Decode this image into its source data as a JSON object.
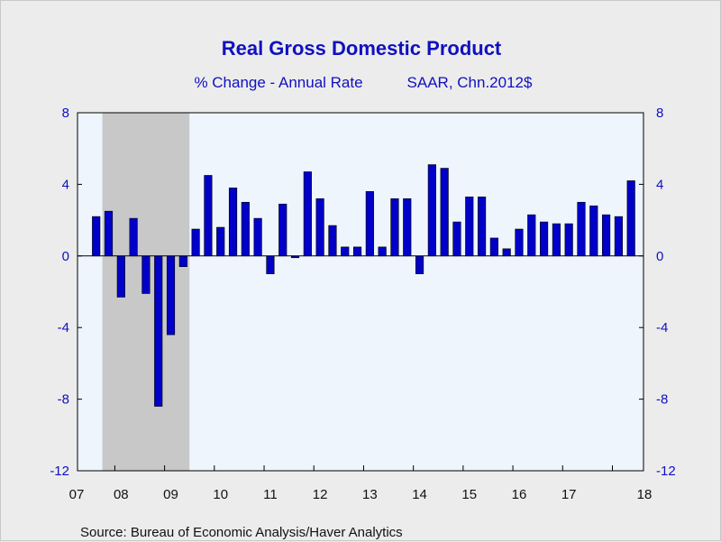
{
  "chart_data": {
    "type": "bar",
    "title": "Real Gross Domestic Product",
    "subtitle_left": "% Change - Annual Rate",
    "subtitle_right": "SAAR, Chn.2012$",
    "source": "Source:  Bureau of Economic Analysis/Haver Analytics",
    "ylim": [
      -12,
      8
    ],
    "yticks": [
      -12,
      -8,
      -4,
      0,
      4,
      8
    ],
    "ytick_labels": [
      "-12",
      "-8",
      "-4",
      "0",
      "4",
      "8"
    ],
    "xtick_labels": [
      "07",
      "08",
      "09",
      "10",
      "11",
      "12",
      "13",
      "14",
      "15",
      "16",
      "17",
      "18"
    ],
    "categories": [
      "2007Q3",
      "2007Q4",
      "2008Q1",
      "2008Q2",
      "2008Q3",
      "2008Q4",
      "2009Q1",
      "2009Q2",
      "2009Q3",
      "2009Q4",
      "2010Q1",
      "2010Q2",
      "2010Q3",
      "2010Q4",
      "2011Q1",
      "2011Q2",
      "2011Q3",
      "2011Q4",
      "2012Q1",
      "2012Q2",
      "2012Q3",
      "2012Q4",
      "2013Q1",
      "2013Q2",
      "2013Q3",
      "2013Q4",
      "2014Q1",
      "2014Q2",
      "2014Q3",
      "2014Q4",
      "2015Q1",
      "2015Q2",
      "2015Q3",
      "2015Q4",
      "2016Q1",
      "2016Q2",
      "2016Q3",
      "2016Q4",
      "2017Q1",
      "2017Q2",
      "2017Q3",
      "2017Q4",
      "2018Q1",
      "2018Q2"
    ],
    "values": [
      2.2,
      2.5,
      -2.3,
      2.1,
      -2.1,
      -8.4,
      -4.4,
      -0.6,
      1.5,
      4.5,
      1.6,
      3.8,
      3.0,
      2.1,
      -1.0,
      2.9,
      -0.1,
      4.7,
      3.2,
      1.7,
      0.5,
      0.5,
      3.6,
      0.5,
      3.2,
      3.2,
      -1.0,
      5.1,
      4.9,
      1.9,
      3.3,
      3.3,
      1.0,
      0.4,
      1.5,
      2.3,
      1.9,
      1.8,
      1.8,
      3.0,
      2.8,
      2.3,
      2.2,
      4.2
    ],
    "recession": {
      "start": "2007Q4",
      "end": "2009Q2"
    },
    "colors": {
      "bar_fill": "#0000c8",
      "bar_stroke": "#000000",
      "plot_background": "#eef5fd",
      "recession_shade": "#c8c8c8",
      "text_blue": "#1010c0"
    },
    "grid": false,
    "legend": "none"
  }
}
